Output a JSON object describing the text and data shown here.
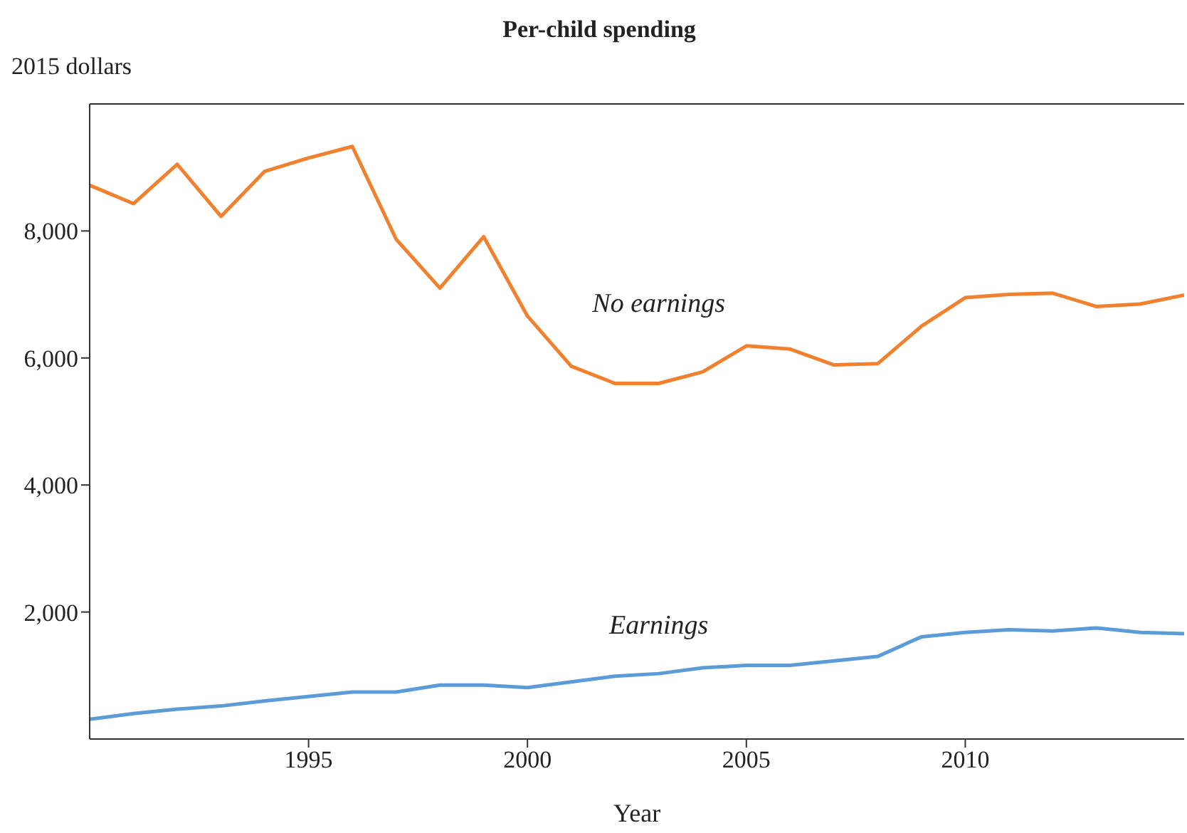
{
  "chart_data": {
    "type": "line",
    "title": "Per-child spending",
    "ylabel": "2015 dollars",
    "xlabel": "Year",
    "x": [
      1990,
      1991,
      1992,
      1993,
      1994,
      1995,
      1996,
      1997,
      1998,
      1999,
      2000,
      2001,
      2002,
      2003,
      2004,
      2005,
      2006,
      2007,
      2008,
      2009,
      2010,
      2011,
      2012,
      2013,
      2014,
      2015
    ],
    "series": [
      {
        "name": "No earnings",
        "color": "#f0812f",
        "values": [
          8720,
          8430,
          9050,
          8230,
          8940,
          9150,
          9330,
          7870,
          7100,
          7910,
          6660,
          5870,
          5600,
          5600,
          5780,
          6190,
          6140,
          5890,
          5910,
          6500,
          6950,
          7000,
          7020,
          6810,
          6850,
          6990
        ]
      },
      {
        "name": "Earnings",
        "color": "#5b9bd8",
        "values": [
          310,
          400,
          470,
          520,
          600,
          670,
          740,
          740,
          850,
          850,
          810,
          900,
          990,
          1030,
          1120,
          1160,
          1160,
          1230,
          1300,
          1610,
          1680,
          1720,
          1700,
          1750,
          1680,
          1660
        ]
      }
    ],
    "xlim": [
      1990,
      2015
    ],
    "xticks": [
      1995,
      2000,
      2005,
      2010
    ],
    "ylim": [
      0,
      10000
    ],
    "yticks": [
      {
        "value": 2000,
        "label": "2,000"
      },
      {
        "value": 4000,
        "label": "4,000"
      },
      {
        "value": 6000,
        "label": "6,000"
      },
      {
        "value": 8000,
        "label": "8,000"
      }
    ],
    "grid": false,
    "legend": false,
    "marker": "none",
    "line_style": "solid"
  }
}
